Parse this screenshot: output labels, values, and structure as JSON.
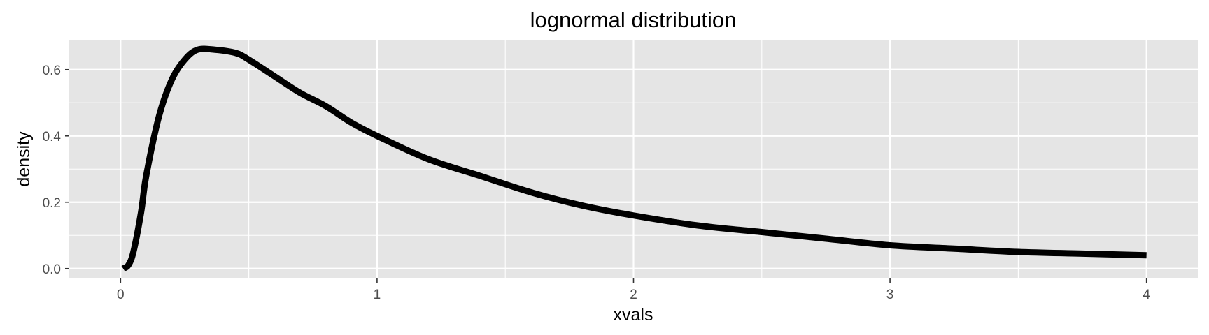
{
  "chart_data": {
    "type": "line",
    "title": "lognormal distribution",
    "xlabel": "xvals",
    "ylabel": "density",
    "xlim": [
      -0.2,
      4.2
    ],
    "ylim": [
      -0.03,
      0.69
    ],
    "x_ticks": [
      0,
      1,
      2,
      3,
      4
    ],
    "y_ticks": [
      0.0,
      0.2,
      0.4,
      0.6
    ],
    "x_tick_labels": [
      "0",
      "1",
      "2",
      "3",
      "4"
    ],
    "y_tick_labels": [
      "0.0",
      "0.2",
      "0.4",
      "0.6"
    ],
    "x_minor_ticks": [
      0.5,
      1.5,
      2.5,
      3.5
    ],
    "y_minor_ticks": [
      0.1,
      0.3,
      0.5
    ],
    "grid": true,
    "legend": "none",
    "colors": {
      "panel": "#e5e5e5",
      "grid": "#ffffff",
      "line": "#000000",
      "tick_text": "#4d4d4d"
    },
    "series": [
      {
        "x": [
          0.01,
          0.03,
          0.05,
          0.08,
          0.1,
          0.15,
          0.2,
          0.25,
          0.3,
          0.368,
          0.45,
          0.5,
          0.6,
          0.7,
          0.8,
          0.9,
          1.0,
          1.2,
          1.4,
          1.6,
          1.8,
          2.0,
          2.25,
          2.5,
          2.75,
          3.0,
          3.25,
          3.5,
          3.75,
          4.0
        ],
        "y": [
          0.0,
          0.01,
          0.05,
          0.17,
          0.28,
          0.46,
          0.57,
          0.63,
          0.66,
          0.66,
          0.65,
          0.63,
          0.58,
          0.53,
          0.49,
          0.44,
          0.4,
          0.33,
          0.28,
          0.23,
          0.19,
          0.16,
          0.13,
          0.11,
          0.09,
          0.07,
          0.06,
          0.05,
          0.045,
          0.04
        ]
      }
    ]
  }
}
